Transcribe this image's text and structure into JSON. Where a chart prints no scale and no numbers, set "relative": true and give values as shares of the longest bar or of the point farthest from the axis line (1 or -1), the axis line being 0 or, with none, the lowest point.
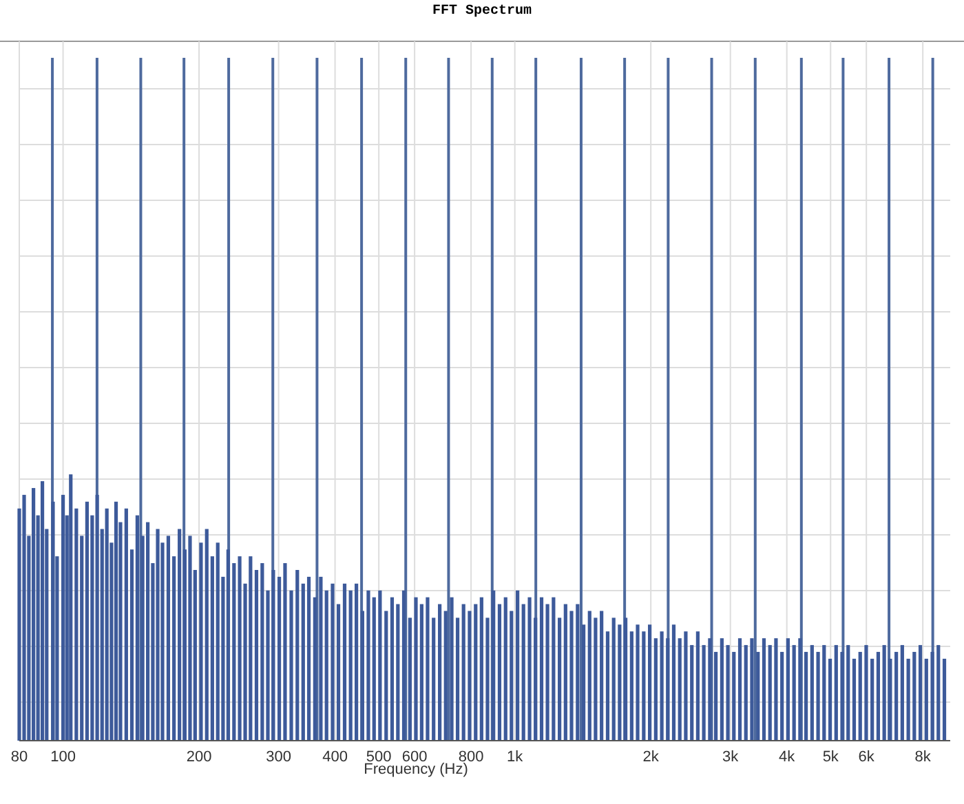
{
  "chart_data": {
    "type": "bar",
    "title": "FFT Spectrum",
    "xlabel": "Frequency (Hz)",
    "relative": true,
    "log": "x",
    "grid": true,
    "xlim": [
      80,
      9200
    ],
    "xticks": [
      80,
      100,
      200,
      300,
      400,
      500,
      600,
      800,
      {
        "value": 1000,
        "label": "1k"
      },
      {
        "value": 2000,
        "label": "2k"
      },
      {
        "value": 3000,
        "label": "3k"
      },
      {
        "value": 4000,
        "label": "4k"
      },
      {
        "value": 5000,
        "label": "5k"
      },
      {
        "value": 6000,
        "label": "6k"
      },
      {
        "value": 8000,
        "label": "8k"
      }
    ],
    "series": [
      {
        "color": "#3d5a9a",
        "x": [
          80,
          82,
          84,
          86,
          88,
          90,
          92,
          95,
          97,
          100,
          102,
          104,
          107,
          110,
          113,
          116,
          119,
          122,
          125,
          128,
          131,
          134,
          138,
          142,
          146,
          150,
          154,
          158,
          162,
          166,
          171,
          176,
          181,
          186,
          191,
          196,
          202,
          208,
          214,
          220,
          226,
          232,
          239,
          246,
          253,
          260,
          268,
          276,
          284,
          292,
          301,
          310,
          320,
          330,
          340,
          350,
          361,
          372,
          383,
          395,
          407,
          420,
          433,
          446,
          460,
          474,
          488,
          503,
          519,
          535,
          551,
          568,
          586,
          604,
          622,
          641,
          661,
          682,
          703,
          725,
          747,
          770,
          794,
          819,
          844,
          870,
          897,
          925,
          954,
          983,
          1014,
          1045,
          1078,
          1111,
          1146,
          1181,
          1218,
          1256,
          1295,
          1335,
          1377,
          1420,
          1464,
          1509,
          1556,
          1605,
          1655,
          1706,
          1759,
          1814,
          1870,
          1929,
          1989,
          2051,
          2115,
          2180,
          2248,
          2318,
          2390,
          2465,
          2541,
          2620,
          2702,
          2786,
          2873,
          2962,
          3054,
          3149,
          3247,
          3348,
          3453,
          3560,
          3671,
          3785,
          3903,
          4024,
          4150,
          4279,
          4412,
          4549,
          4691,
          4837,
          4988,
          5143,
          5303,
          5468,
          5638,
          5814,
          5995,
          6181,
          6374,
          6572,
          6777,
          6988,
          7205,
          7430,
          7661,
          7899,
          8145,
          8399,
          8660,
          8930
        ],
        "values": [
          0.34,
          0.36,
          0.3,
          0.37,
          0.33,
          0.38,
          0.31,
          0.35,
          0.27,
          0.36,
          0.33,
          0.39,
          0.34,
          0.3,
          0.35,
          0.33,
          0.36,
          0.31,
          0.34,
          0.29,
          0.35,
          0.32,
          0.34,
          0.28,
          0.33,
          0.3,
          0.32,
          0.26,
          0.31,
          0.29,
          0.3,
          0.27,
          0.31,
          0.28,
          0.3,
          0.25,
          0.29,
          0.31,
          0.27,
          0.29,
          0.24,
          0.28,
          0.26,
          0.27,
          0.23,
          0.27,
          0.25,
          0.26,
          0.22,
          0.25,
          0.24,
          0.26,
          0.22,
          0.25,
          0.23,
          0.24,
          0.21,
          0.24,
          0.22,
          0.23,
          0.2,
          0.23,
          0.22,
          0.23,
          0.19,
          0.22,
          0.21,
          0.22,
          0.19,
          0.21,
          0.2,
          0.22,
          0.18,
          0.21,
          0.2,
          0.21,
          0.18,
          0.2,
          0.19,
          0.21,
          0.18,
          0.2,
          0.19,
          0.2,
          0.21,
          0.18,
          0.22,
          0.2,
          0.21,
          0.19,
          0.22,
          0.2,
          0.21,
          0.18,
          0.21,
          0.2,
          0.21,
          0.18,
          0.2,
          0.19,
          0.2,
          0.17,
          0.19,
          0.18,
          0.19,
          0.16,
          0.18,
          0.17,
          0.18,
          0.16,
          0.17,
          0.16,
          0.17,
          0.15,
          0.16,
          0.15,
          0.17,
          0.15,
          0.16,
          0.14,
          0.16,
          0.14,
          0.15,
          0.13,
          0.15,
          0.14,
          0.13,
          0.15,
          0.14,
          0.15,
          0.13,
          0.15,
          0.14,
          0.15,
          0.13,
          0.15,
          0.14,
          0.15,
          0.13,
          0.14,
          0.13,
          0.14,
          0.12,
          0.14,
          0.13,
          0.14,
          0.12,
          0.13,
          0.14,
          0.12,
          0.13,
          0.14,
          0.12,
          0.13,
          0.14,
          0.12,
          0.13,
          0.14,
          0.12,
          0.13,
          0.14,
          0.12
        ]
      },
      {
        "color": "#4e6a9e",
        "x": [
          94.7,
          118.9,
          148.6,
          185.2,
          232.6,
          291.3,
          364.9,
          457.9,
          573.5,
          713.4,
          891,
          1113,
          1402,
          1750,
          2185,
          2727,
          3405,
          4308,
          5329,
          6734,
          8417
        ],
        "values": [
          1,
          1,
          1,
          1,
          1,
          1,
          1,
          1,
          1,
          1,
          1,
          1,
          1,
          1,
          1,
          1,
          1,
          1,
          1,
          1,
          1
        ]
      }
    ]
  }
}
